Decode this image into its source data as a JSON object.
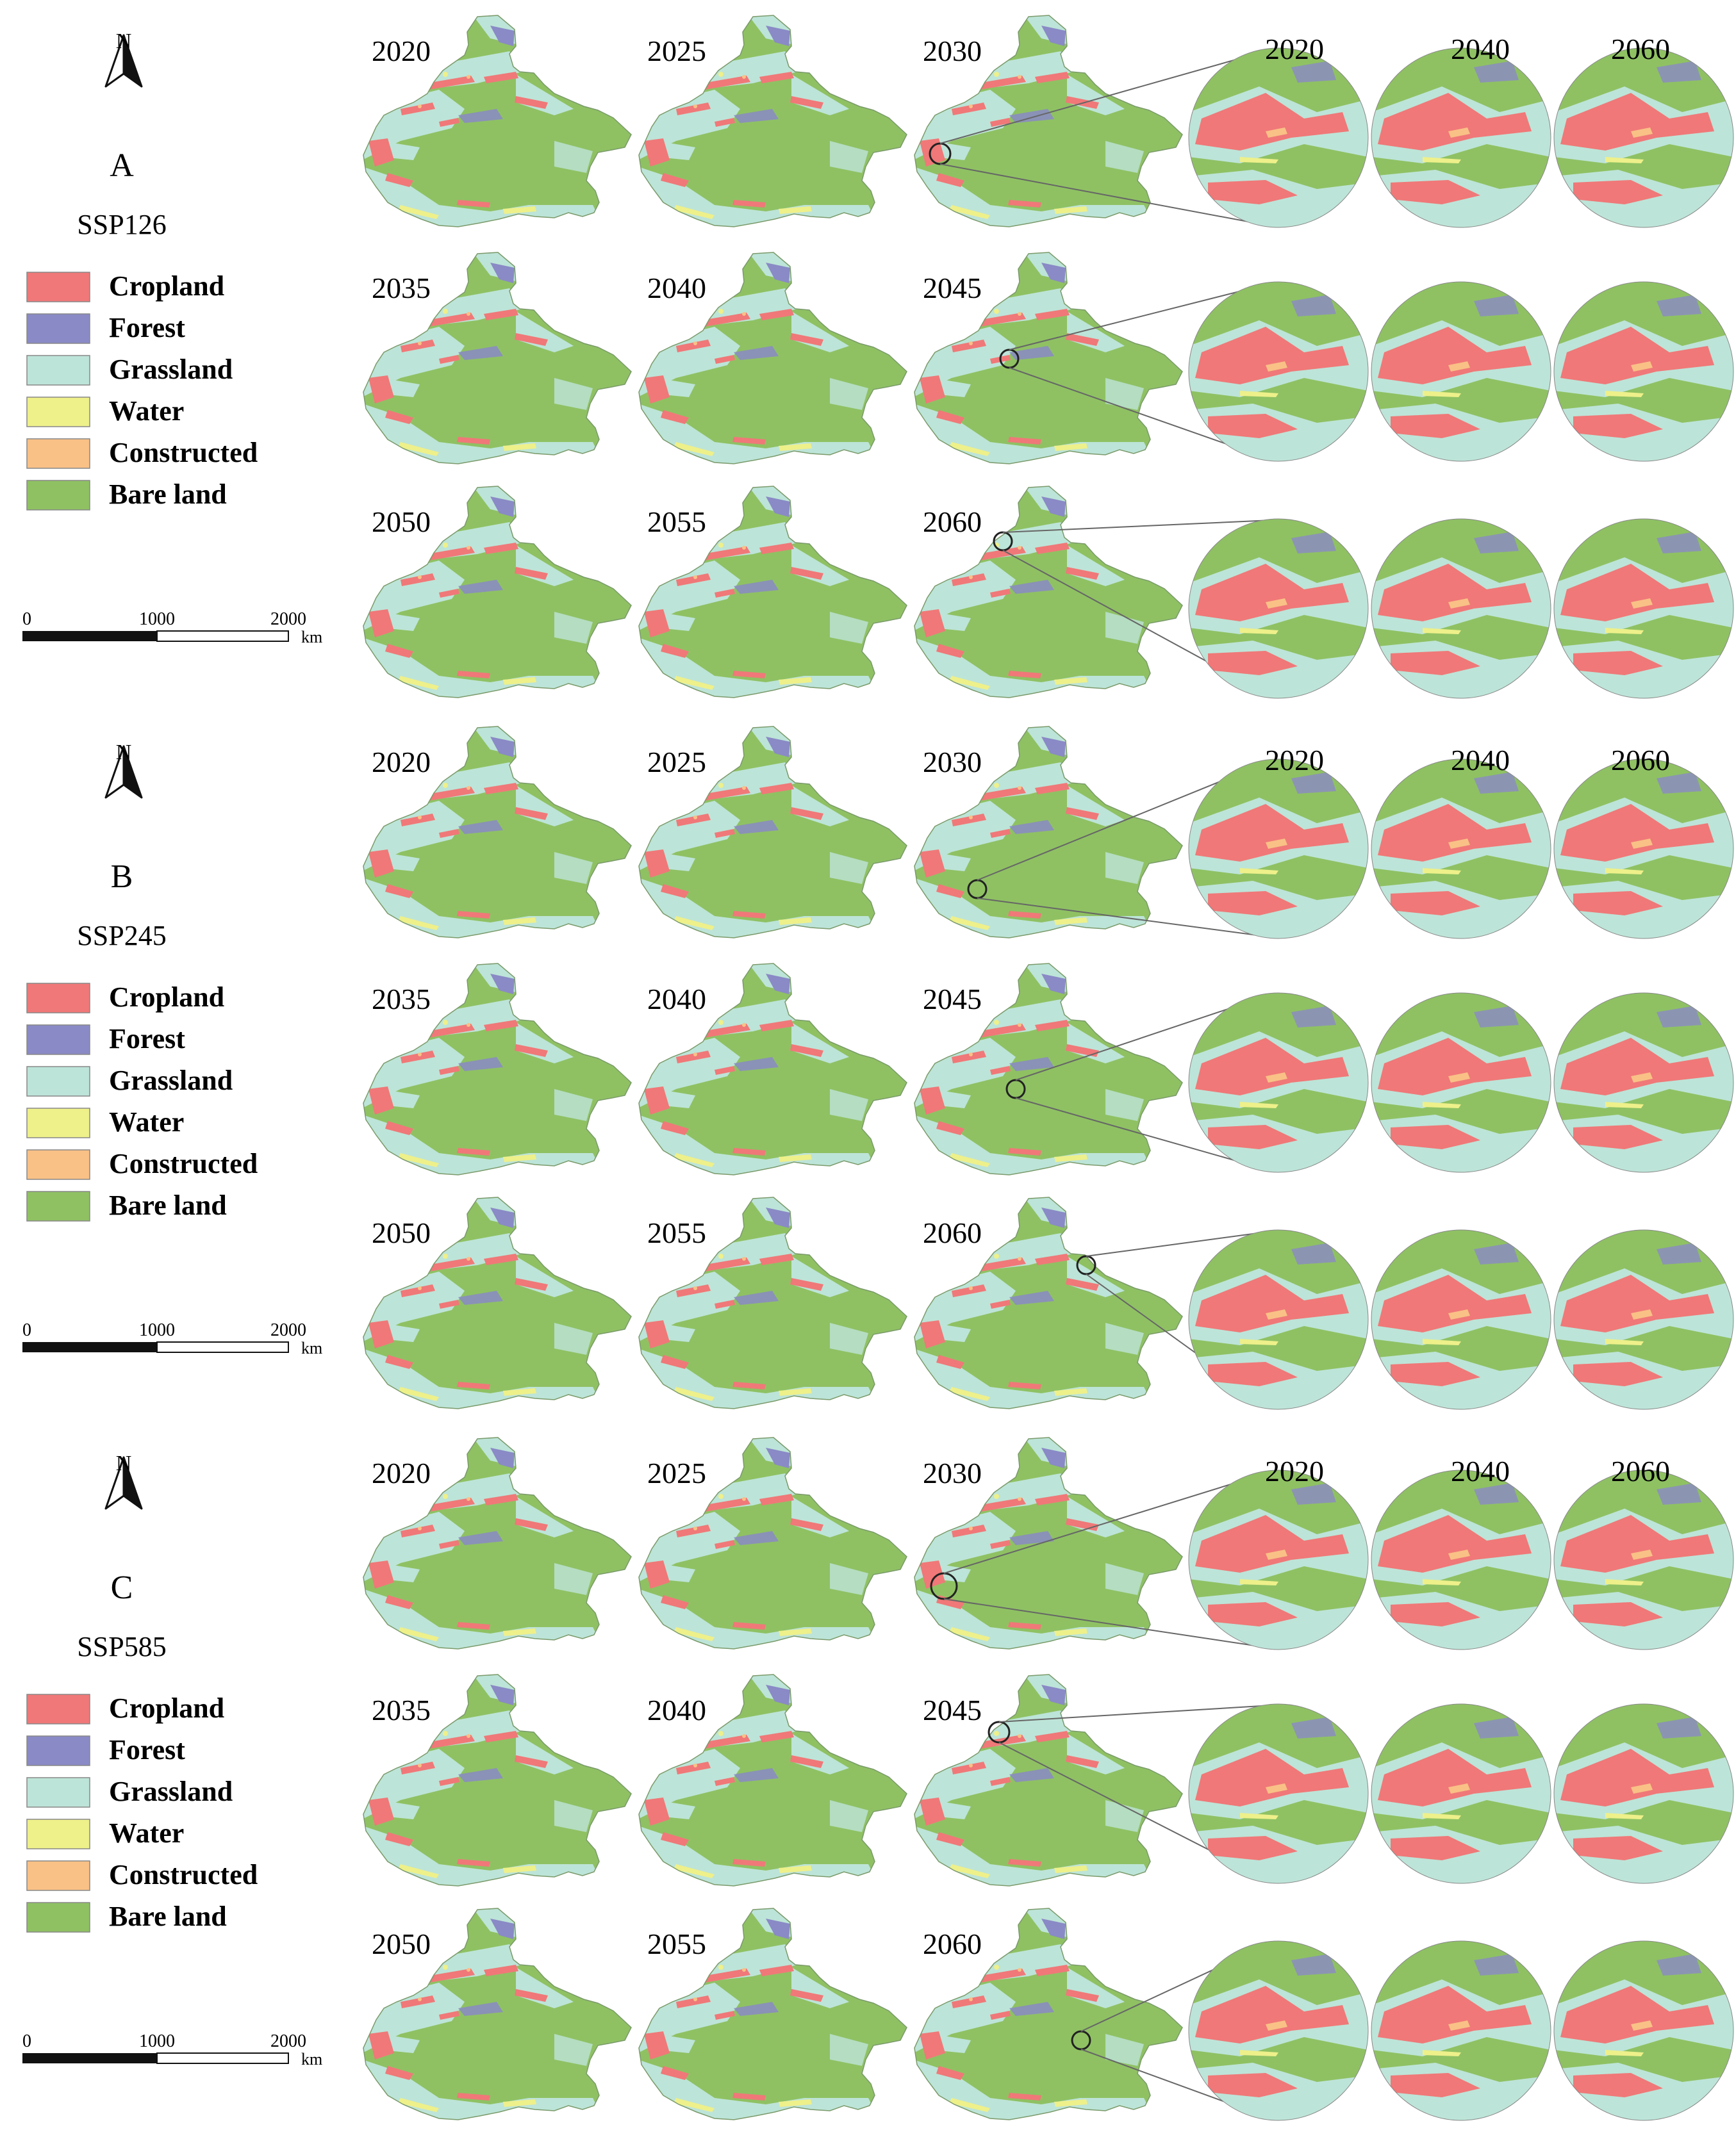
{
  "colors": {
    "cropland": "#f07878",
    "forest": "#8a8ac6",
    "grassland": "#bde4d8",
    "water": "#eef08a",
    "constructed": "#f9c186",
    "bare_land": "#8fc163",
    "map_outline": "#7a9a6a"
  },
  "legend_items": [
    {
      "key": "cropland",
      "label": "Cropland"
    },
    {
      "key": "forest",
      "label": "Forest"
    },
    {
      "key": "grassland",
      "label": "Grassland"
    },
    {
      "key": "water",
      "label": "Water"
    },
    {
      "key": "constructed",
      "label": "Constructed"
    },
    {
      "key": "bare_land",
      "label": "Bare land"
    }
  ],
  "north_label": "N",
  "scale_bar": {
    "ticks": [
      "0",
      "1000",
      "2000"
    ],
    "unit": "km"
  },
  "panels": [
    {
      "letter": "A",
      "scenario": "SSP126",
      "map_rows": [
        [
          "2020",
          "2025",
          "2030"
        ],
        [
          "2035",
          "2040",
          "2045"
        ],
        [
          "2050",
          "2055",
          "2060"
        ]
      ],
      "zoom_years": [
        "2020",
        "2040",
        "2060"
      ]
    },
    {
      "letter": "B",
      "scenario": "SSP245",
      "map_rows": [
        [
          "2020",
          "2025",
          "2030"
        ],
        [
          "2035",
          "2040",
          "2045"
        ],
        [
          "2050",
          "2055",
          "2060"
        ]
      ],
      "zoom_years": [
        "2020",
        "2040",
        "2060"
      ]
    },
    {
      "letter": "C",
      "scenario": "SSP585",
      "map_rows": [
        [
          "2020",
          "2025",
          "2030"
        ],
        [
          "2035",
          "2040",
          "2045"
        ],
        [
          "2050",
          "2055",
          "2060"
        ]
      ],
      "zoom_years": [
        "2020",
        "2040",
        "2060"
      ]
    }
  ]
}
